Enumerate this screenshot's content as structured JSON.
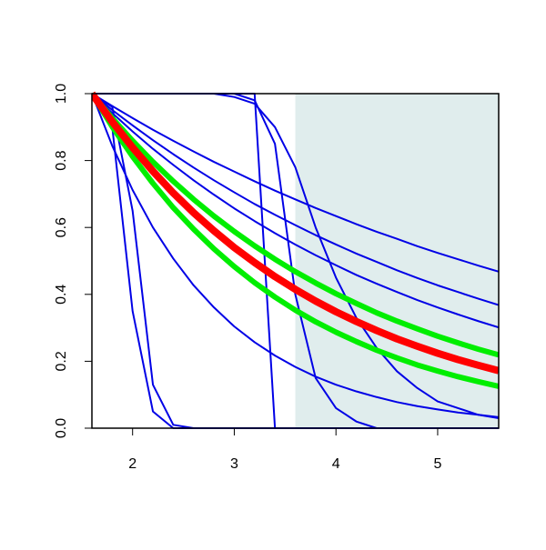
{
  "chart_data": {
    "type": "line",
    "x": [
      1.6,
      1.8,
      2.0,
      2.2,
      2.4,
      2.6,
      2.8,
      3.0,
      3.2,
      3.4,
      3.6,
      3.8,
      4.0,
      4.2,
      4.4,
      4.6,
      4.8,
      5.0,
      5.2,
      5.4,
      5.6
    ],
    "xlim": [
      1.6,
      5.6
    ],
    "ylim": [
      0,
      1
    ],
    "xticks": [
      2,
      3,
      4,
      5
    ],
    "yticks": [
      {
        "value": 0,
        "label": "0.0"
      },
      {
        "value": 0.2,
        "label": "0.2"
      },
      {
        "value": 0.4,
        "label": "0.4"
      },
      {
        "value": 0.6,
        "label": "0.6"
      },
      {
        "value": 0.8,
        "label": "0.8"
      },
      {
        "value": 1,
        "label": "1.0"
      }
    ],
    "shade": {
      "xlim": [
        3.6,
        5.6
      ],
      "color": "#e0eded"
    },
    "series": [
      {
        "color": "#0000e6",
        "width": 2,
        "values": [
          1,
          0.963,
          0.927,
          0.892,
          0.859,
          0.827,
          0.796,
          0.767,
          0.738,
          0.71,
          0.684,
          0.658,
          0.634,
          0.61,
          0.587,
          0.566,
          0.544,
          0.524,
          0.505,
          0.486,
          0.468
        ]
      },
      {
        "color": "#0000e6",
        "width": 2,
        "values": [
          1,
          0.951,
          0.905,
          0.861,
          0.819,
          0.779,
          0.741,
          0.705,
          0.67,
          0.638,
          0.607,
          0.577,
          0.549,
          0.522,
          0.497,
          0.472,
          0.449,
          0.427,
          0.407,
          0.387,
          0.368
        ]
      },
      {
        "color": "#0000e6",
        "width": 2,
        "values": [
          1,
          0.942,
          0.887,
          0.835,
          0.787,
          0.741,
          0.698,
          0.657,
          0.619,
          0.583,
          0.549,
          0.517,
          0.487,
          0.458,
          0.432,
          0.407,
          0.383,
          0.361,
          0.34,
          0.32,
          0.301
        ]
      },
      {
        "color": "#0000e6",
        "width": 2,
        "values": [
          1,
          0.844,
          0.712,
          0.6,
          0.507,
          0.427,
          0.361,
          0.304,
          0.257,
          0.217,
          0.183,
          0.154,
          0.13,
          0.11,
          0.093,
          0.078,
          0.066,
          0.056,
          0.047,
          0.04,
          0.033
        ]
      },
      {
        "color": "#0000e6",
        "width": 2,
        "values": [
          1,
          0.96,
          0.65,
          0.13,
          0.01,
          0,
          0,
          0,
          0,
          0,
          0,
          0,
          0,
          0,
          0,
          0,
          0,
          0,
          0,
          0,
          0
        ]
      },
      {
        "color": "#0000e6",
        "width": 2,
        "values": [
          1,
          0.9,
          0.35,
          0.05,
          0,
          0,
          0,
          0,
          0,
          0,
          0,
          0,
          0,
          0,
          0,
          0,
          0,
          0,
          0,
          0,
          0
        ]
      },
      {
        "color": "#0000e6",
        "width": 2,
        "values": [
          1,
          1,
          1,
          1,
          1,
          1,
          1,
          1,
          1,
          0,
          0,
          0,
          0,
          0,
          0,
          0,
          0,
          0,
          0,
          0,
          0
        ]
      },
      {
        "color": "#0000e6",
        "width": 2,
        "values": [
          1,
          1,
          1,
          1,
          1,
          1,
          1,
          1,
          0.98,
          0.85,
          0.4,
          0.15,
          0.06,
          0.02,
          0,
          0,
          0,
          0,
          0,
          0,
          0
        ]
      },
      {
        "color": "#0000e6",
        "width": 2,
        "values": [
          1,
          1,
          1,
          1,
          1,
          1,
          1,
          0.99,
          0.97,
          0.9,
          0.78,
          0.6,
          0.45,
          0.33,
          0.24,
          0.17,
          0.12,
          0.08,
          0.06,
          0.04,
          0.03
        ]
      },
      {
        "color": "#00ee00",
        "width": 6,
        "values": [
          1,
          0.927,
          0.859,
          0.796,
          0.738,
          0.684,
          0.634,
          0.588,
          0.545,
          0.505,
          0.468,
          0.434,
          0.402,
          0.373,
          0.345,
          0.32,
          0.297,
          0.275,
          0.255,
          0.236,
          0.219
        ]
      },
      {
        "color": "#00ee00",
        "width": 6,
        "values": [
          1,
          0.901,
          0.812,
          0.732,
          0.659,
          0.595,
          0.536,
          0.483,
          0.435,
          0.392,
          0.353,
          0.318,
          0.287,
          0.259,
          0.233,
          0.21,
          0.189,
          0.171,
          0.154,
          0.139,
          0.125
        ]
      },
      {
        "color": "#ff0000",
        "width": 8,
        "values": [
          1,
          0.916,
          0.839,
          0.768,
          0.703,
          0.644,
          0.59,
          0.54,
          0.495,
          0.453,
          0.415,
          0.38,
          0.348,
          0.319,
          0.292,
          0.267,
          0.245,
          0.224,
          0.205,
          0.188,
          0.172
        ]
      }
    ]
  }
}
